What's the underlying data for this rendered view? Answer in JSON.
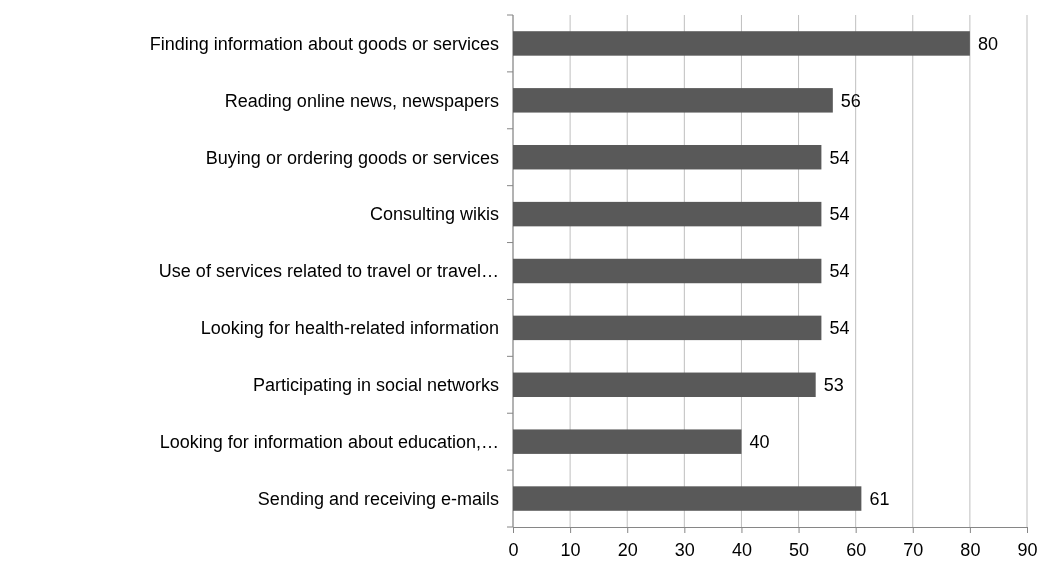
{
  "chart_data": {
    "type": "bar",
    "orientation": "horizontal",
    "categories": [
      "Finding information about goods or services",
      "Reading online news, newspapers",
      "Buying or ordering goods or services",
      "Consulting wikis",
      "Use of services related to travel or travel…",
      "Looking for health-related information",
      "Participating in social networks",
      "Looking for information about education,…",
      "Sending and receiving e-mails"
    ],
    "values": [
      80,
      56,
      54,
      54,
      54,
      54,
      53,
      40,
      61
    ],
    "color": "#595959",
    "xlim": [
      0,
      90
    ],
    "xticks": [
      0,
      10,
      20,
      30,
      40,
      50,
      60,
      70,
      80,
      90
    ],
    "grid": "x",
    "data_labels": true
  }
}
